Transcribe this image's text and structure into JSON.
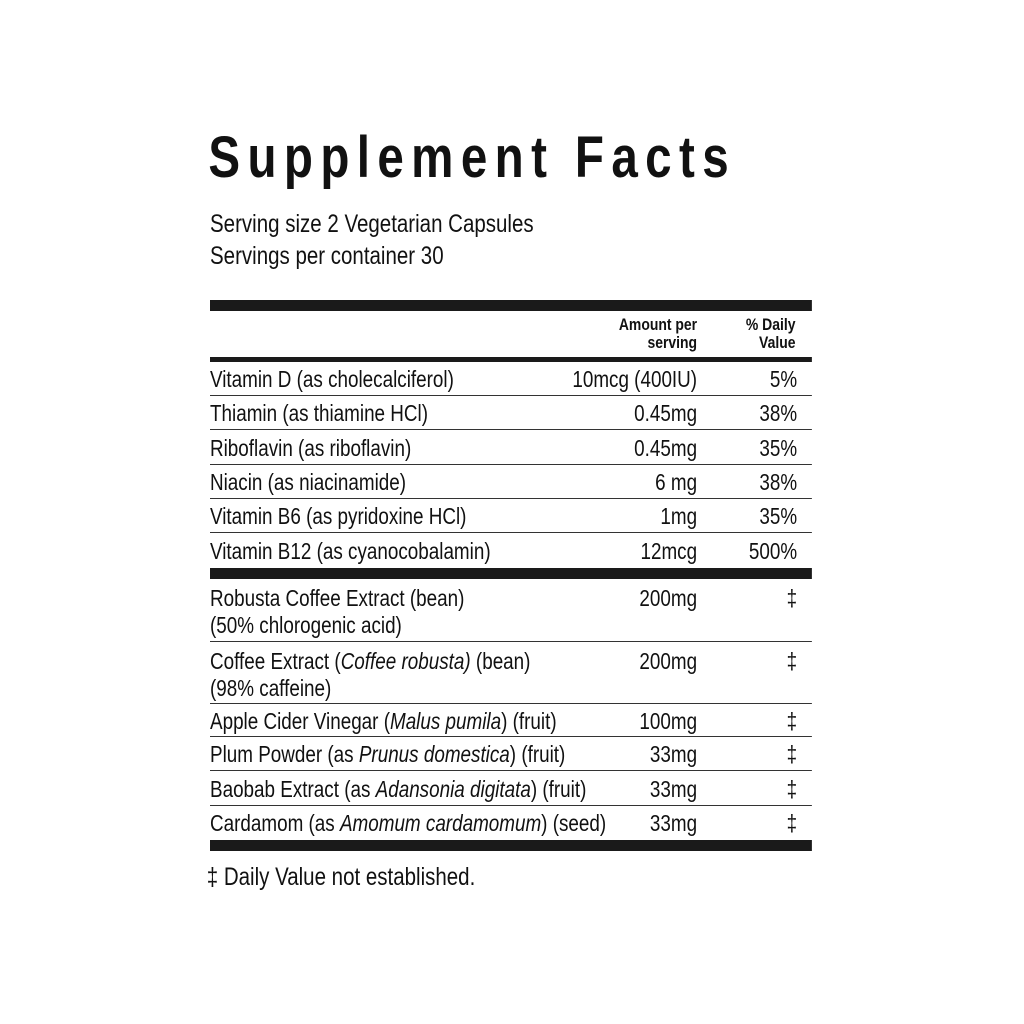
{
  "title": "Supplement Facts",
  "serving_size": "Serving size 2 Vegetarian Capsules",
  "servings_per_container": "Servings per container 30",
  "header": {
    "amount": [
      "Amount per",
      "serving"
    ],
    "daily_value": [
      "% Daily",
      "Value"
    ]
  },
  "vitamins": [
    {
      "name": [
        [
          {
            "text": "Vitamin D (as cholecalciferol)"
          }
        ]
      ],
      "amount": "10mcg (400IU)",
      "daily_value": "5%"
    },
    {
      "name": [
        [
          {
            "text": "Thiamin (as thiamine HCl)"
          }
        ]
      ],
      "amount": "0.45mg",
      "daily_value": "38%"
    },
    {
      "name": [
        [
          {
            "text": "Riboflavin (as riboflavin)"
          }
        ]
      ],
      "amount": "0.45mg",
      "daily_value": "35%"
    },
    {
      "name": [
        [
          {
            "text": "Niacin (as niacinamide)"
          }
        ]
      ],
      "amount": "6 mg",
      "daily_value": "38%"
    },
    {
      "name": [
        [
          {
            "text": "Vitamin B6 (as pyridoxine HCl)"
          }
        ]
      ],
      "amount": "1mg",
      "daily_value": "35%"
    },
    {
      "name": [
        [
          {
            "text": "Vitamin B12 (as cyanocobalamin)"
          }
        ]
      ],
      "amount": "12mcg",
      "daily_value": "500%"
    }
  ],
  "other": [
    {
      "name": [
        [
          {
            "text": "Robusta Coffee Extract (bean)"
          }
        ],
        [
          {
            "text": "(50% chlorogenic acid)"
          }
        ]
      ],
      "amount": "200mg",
      "daily_value": "‡"
    },
    {
      "name": [
        [
          {
            "text": "Coffee Extract ("
          },
          {
            "text": "Coffee robusta)",
            "italic": true
          },
          {
            "text": " (bean)"
          }
        ],
        [
          {
            "text": "(98% caffeine)"
          }
        ]
      ],
      "amount": "200mg",
      "daily_value": "‡"
    },
    {
      "name": [
        [
          {
            "text": "Apple Cider Vinegar ("
          },
          {
            "text": "Malus pumila",
            "italic": true
          },
          {
            "text": ") (fruit)"
          }
        ]
      ],
      "amount": "100mg",
      "daily_value": "‡"
    },
    {
      "name": [
        [
          {
            "text": "Plum Powder (as "
          },
          {
            "text": "Prunus domestica",
            "italic": true
          },
          {
            "text": ") (fruit)"
          }
        ]
      ],
      "amount": "33mg",
      "daily_value": "‡"
    },
    {
      "name": [
        [
          {
            "text": "Baobab Extract (as "
          },
          {
            "text": "Adansonia digitata",
            "italic": true
          },
          {
            "text": ") (fruit)"
          }
        ]
      ],
      "amount": "33mg",
      "daily_value": "‡"
    },
    {
      "name": [
        [
          {
            "text": "Cardamom (as "
          },
          {
            "text": "Amomum cardamomum",
            "italic": true
          },
          {
            "text": ") (seed)"
          }
        ]
      ],
      "amount": "33mg",
      "daily_value": "‡"
    }
  ],
  "footnote": "‡ Daily Value not established."
}
